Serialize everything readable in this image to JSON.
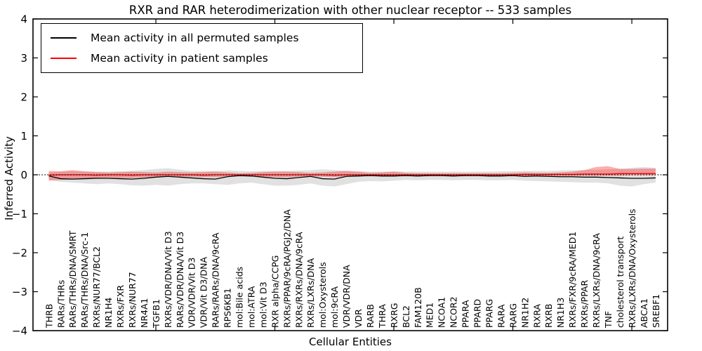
{
  "chart_data": {
    "type": "line",
    "title": "RXR and RAR heterodimerization with other nuclear receptor -- 533 samples",
    "xlabel": "Cellular Entities",
    "ylabel": "Inferred Activity",
    "ylim": [
      -4,
      4
    ],
    "yticks": [
      -4,
      -3,
      -2,
      -1,
      0,
      1,
      2,
      3,
      4
    ],
    "grid": false,
    "legend_position": "upper left",
    "zero_line_style": "dotted",
    "frame_color": "#000000",
    "categories": [
      "THRB",
      "RARs/THRs",
      "RARs/THRs/DNA/SMRT",
      "RARs/THRs/DNA/Src-1",
      "RXRs/NUR77/BCL2",
      "NR1H4",
      "RXRs/FXR",
      "RXRs/NUR77",
      "NR4A1",
      "TGFB1",
      "RXRs/VDR/DNA/Vit D3",
      "RARs/VDR/DNA/Vit D3",
      "VDR/VDR/Vit D3",
      "VDR/Vit D3/DNA",
      "RARs/RARs/DNA/9cRA",
      "RPS6KB1",
      "mol:Bile acids",
      "mol:ATRA",
      "mol:Vit D3",
      "RXR alpha/CCPG",
      "RXRs/PPAR/9cRA/PGJ2/DNA",
      "RXRs/RXRs/DNA/9cRA",
      "RXRs/LXRs/DNA",
      "mol:Oxysterols",
      "mol:9cRA",
      "VDR/VDR/DNA",
      "VDR",
      "RARB",
      "THRA",
      "RXRG",
      "BCL2",
      "FAM120B",
      "MED1",
      "NCOA1",
      "NCOR2",
      "PPARA",
      "PPARD",
      "PPARG",
      "RARA",
      "RARG",
      "NR1H2",
      "RXRA",
      "RXRB",
      "NR1H3",
      "RXRs/FXR/9cRA/MED1",
      "RXRs/PPAR",
      "RXRs/LXRs/DNA/9cRA",
      "TNF",
      "cholesterol transport",
      "RXRs/LXRs/DNA/Oxysterols",
      "ABCA1",
      "SREBF1"
    ],
    "series": [
      {
        "name": "Mean activity in all permuted samples",
        "color": "#000000",
        "band_color": "#aaaaaa",
        "band_opacity": 0.35,
        "values": [
          -0.03,
          -0.1,
          -0.11,
          -0.1,
          -0.09,
          -0.09,
          -0.1,
          -0.11,
          -0.09,
          -0.06,
          -0.04,
          -0.06,
          -0.08,
          -0.1,
          -0.11,
          -0.05,
          -0.02,
          -0.03,
          -0.06,
          -0.09,
          -0.1,
          -0.07,
          -0.04,
          -0.1,
          -0.11,
          -0.04,
          -0.03,
          -0.02,
          -0.03,
          -0.03,
          -0.02,
          -0.03,
          -0.02,
          -0.02,
          -0.03,
          -0.02,
          -0.02,
          -0.03,
          -0.03,
          -0.02,
          -0.04,
          -0.03,
          -0.04,
          -0.05,
          -0.05,
          -0.06,
          -0.06,
          -0.07,
          -0.08,
          -0.09,
          -0.09,
          -0.08
        ],
        "band_upper": [
          0.06,
          0.08,
          0.09,
          0.08,
          0.08,
          0.08,
          0.09,
          0.1,
          0.12,
          0.15,
          0.17,
          0.13,
          0.1,
          0.1,
          0.1,
          0.11,
          0.1,
          0.09,
          0.1,
          0.1,
          0.1,
          0.11,
          0.12,
          0.14,
          0.12,
          0.1,
          0.09,
          0.08,
          0.08,
          0.09,
          0.08,
          0.08,
          0.08,
          0.08,
          0.08,
          0.08,
          0.08,
          0.08,
          0.09,
          0.09,
          0.1,
          0.1,
          0.1,
          0.11,
          0.12,
          0.12,
          0.13,
          0.14,
          0.15,
          0.18,
          0.2,
          0.18
        ],
        "band_lower": [
          -0.13,
          -0.18,
          -0.2,
          -0.22,
          -0.24,
          -0.22,
          -0.24,
          -0.27,
          -0.28,
          -0.26,
          -0.28,
          -0.24,
          -0.22,
          -0.22,
          -0.24,
          -0.26,
          -0.22,
          -0.2,
          -0.24,
          -0.28,
          -0.28,
          -0.26,
          -0.22,
          -0.28,
          -0.3,
          -0.24,
          -0.18,
          -0.16,
          -0.17,
          -0.15,
          -0.13,
          -0.14,
          -0.13,
          -0.13,
          -0.14,
          -0.13,
          -0.13,
          -0.14,
          -0.14,
          -0.13,
          -0.15,
          -0.16,
          -0.17,
          -0.18,
          -0.19,
          -0.2,
          -0.2,
          -0.22,
          -0.28,
          -0.3,
          -0.24,
          -0.2
        ]
      },
      {
        "name": "Mean activity in patient samples",
        "color": "#ff0000",
        "band_color": "#ff0000",
        "band_opacity": 0.32,
        "values": [
          -0.01,
          0.0,
          0.0,
          0.0,
          -0.01,
          0.0,
          0.0,
          -0.01,
          0.0,
          0.0,
          0.0,
          0.0,
          0.0,
          -0.01,
          0.0,
          0.0,
          0.0,
          0.0,
          0.0,
          0.0,
          0.0,
          0.0,
          0.0,
          0.0,
          -0.01,
          0.0,
          0.0,
          0.0,
          0.0,
          0.0,
          0.0,
          0.0,
          0.0,
          0.0,
          0.0,
          0.0,
          0.0,
          0.0,
          0.0,
          0.0,
          0.01,
          0.01,
          0.01,
          0.01,
          0.01,
          0.02,
          0.02,
          0.02,
          0.03,
          0.03,
          0.03,
          0.03
        ],
        "band_upper": [
          0.1,
          0.09,
          0.12,
          0.09,
          0.07,
          0.06,
          0.07,
          0.08,
          0.07,
          0.06,
          0.08,
          0.07,
          0.06,
          0.07,
          0.08,
          0.06,
          0.04,
          0.05,
          0.07,
          0.08,
          0.08,
          0.07,
          0.05,
          0.06,
          0.08,
          0.1,
          0.08,
          0.05,
          0.06,
          0.08,
          0.05,
          0.04,
          0.04,
          0.04,
          0.04,
          0.04,
          0.04,
          0.04,
          0.04,
          0.05,
          0.06,
          0.05,
          0.05,
          0.06,
          0.08,
          0.12,
          0.2,
          0.22,
          0.15,
          0.15,
          0.16,
          0.16
        ],
        "band_lower": [
          -0.15,
          -0.13,
          -0.12,
          -0.1,
          -0.08,
          -0.07,
          -0.08,
          -0.08,
          -0.07,
          -0.06,
          -0.05,
          -0.05,
          -0.05,
          -0.06,
          -0.06,
          -0.05,
          -0.04,
          -0.04,
          -0.05,
          -0.06,
          -0.06,
          -0.05,
          -0.04,
          -0.05,
          -0.06,
          -0.05,
          -0.04,
          -0.03,
          -0.03,
          -0.04,
          -0.03,
          -0.03,
          -0.03,
          -0.03,
          -0.03,
          -0.03,
          -0.03,
          -0.03,
          -0.03,
          -0.03,
          -0.03,
          -0.03,
          -0.03,
          -0.03,
          -0.03,
          -0.02,
          -0.02,
          -0.02,
          -0.02,
          -0.01,
          -0.01,
          -0.01
        ]
      }
    ]
  }
}
